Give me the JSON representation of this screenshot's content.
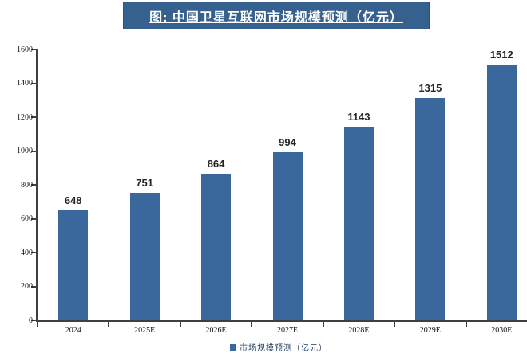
{
  "header": {
    "title": "图: 中国卫星互联网市场规模预测（亿元）"
  },
  "legend": {
    "label": "市场规模预测（亿元）"
  },
  "colors": {
    "bar": "#3A679C",
    "title_bg": "#36618E",
    "title_border": "#2A517C",
    "title_text": "#FFFFFF",
    "axis": "#3F3F3F",
    "tick_label": "#111111",
    "value_label": "#262626",
    "legend_text": "#17365D"
  },
  "chart_data": {
    "type": "bar",
    "title": "图: 中国卫星互联网市场规模预测（亿元）",
    "categories": [
      "2024",
      "2025E",
      "2026E",
      "2027E",
      "2028E",
      "2029E",
      "2030E"
    ],
    "values": [
      648,
      751,
      864,
      994,
      1143,
      1315,
      1512
    ],
    "xlabel": "",
    "ylabel": "",
    "ylim": [
      0,
      1600
    ],
    "ytick_step": 200,
    "grid": false,
    "legend_entries": [
      "市场规模预测（亿元）"
    ],
    "legend_position": "bottom",
    "bar_color": "#3A679C"
  }
}
